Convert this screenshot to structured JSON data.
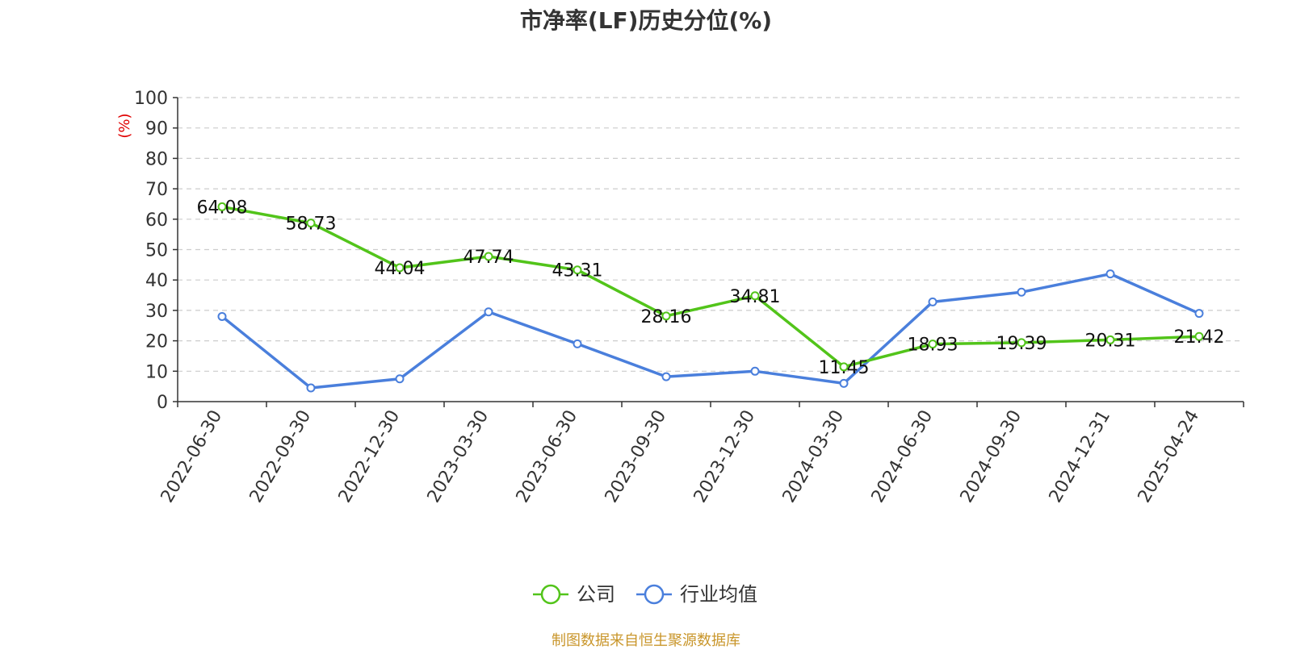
{
  "colors": {
    "company": "#52c41a",
    "industry": "#4a7fdc",
    "unit": "#e00000",
    "source": "#c9962b"
  },
  "chart_data": {
    "type": "line",
    "title": "市净率(LF)历史分位(%)",
    "ylabel": "(%)",
    "ylim": [
      0,
      100
    ],
    "yticks": [
      0,
      10,
      20,
      30,
      40,
      50,
      60,
      70,
      80,
      90,
      100
    ],
    "grid": true,
    "legend_position": "bottom-center",
    "categories": [
      "2022-06-30",
      "2022-09-30",
      "2022-12-30",
      "2023-03-30",
      "2023-06-30",
      "2023-09-30",
      "2023-12-30",
      "2024-03-30",
      "2024-06-30",
      "2024-09-30",
      "2024-12-31",
      "2025-04-24"
    ],
    "series": [
      {
        "name": "公司",
        "color": "#52c41a",
        "show_labels": true,
        "values": [
          64.08,
          58.73,
          44.04,
          47.74,
          43.31,
          28.16,
          34.81,
          11.45,
          18.93,
          19.39,
          20.31,
          21.42
        ]
      },
      {
        "name": "行业均值",
        "color": "#4a7fdc",
        "show_labels": false,
        "values": [
          28,
          4.5,
          7.5,
          29.5,
          19,
          8.2,
          10,
          6,
          32.8,
          36,
          42,
          29
        ]
      }
    ]
  },
  "source_text": "制图数据来自恒生聚源数据库"
}
